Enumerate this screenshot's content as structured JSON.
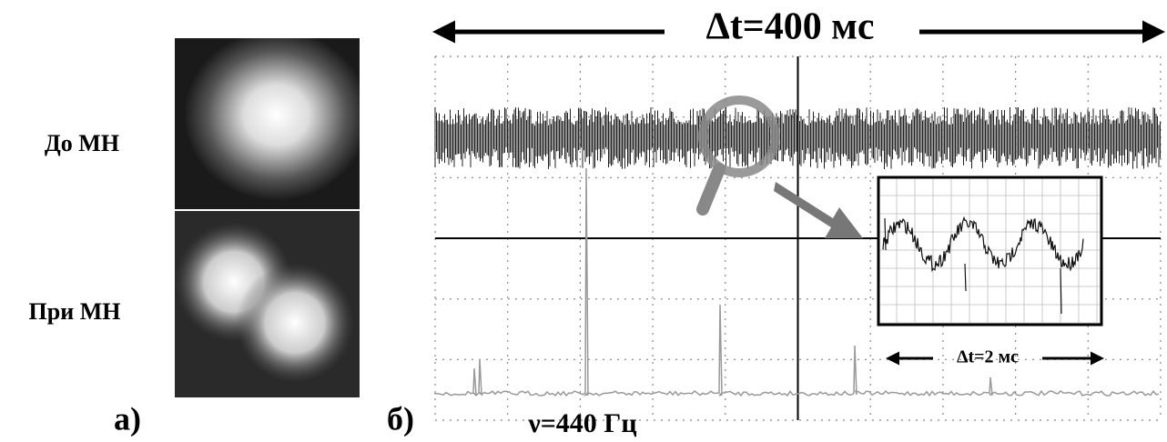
{
  "panel_a": {
    "label": "а)",
    "before": "До МН",
    "after": "При МН"
  },
  "panel_b": {
    "label": "б)",
    "time_span": "Δt=400 мс",
    "frequency": "ν=440 Гц",
    "inset_time_span": "Δt=2 мс"
  }
}
